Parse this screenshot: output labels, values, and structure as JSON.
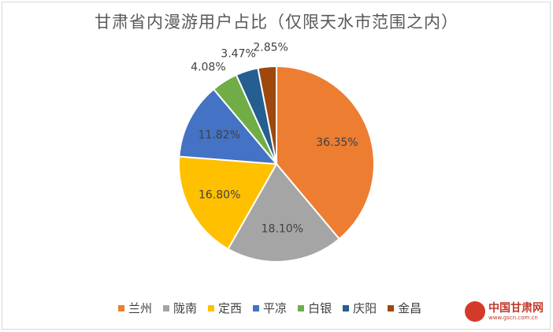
{
  "chart_data": {
    "type": "pie",
    "title": "甘肃省内漫游用户占比（仅限天水市范围之内）",
    "categories": [
      "兰州",
      "陇南",
      "定西",
      "平凉",
      "白银",
      "庆阳",
      "金昌"
    ],
    "values": [
      36.35,
      18.1,
      16.8,
      11.82,
      4.08,
      3.47,
      2.85
    ],
    "labels": [
      "36.35%",
      "18.10%",
      "16.80%",
      "11.82%",
      "4.08%",
      "3.47%",
      "2.85%"
    ],
    "colors": [
      "#ed7d31",
      "#a5a5a5",
      "#ffc000",
      "#4472c4",
      "#70ad47",
      "#255e91",
      "#9e480e"
    ],
    "legend_position": "bottom"
  },
  "watermark": {
    "text": "中国甘肃网",
    "url": "www.gscn.com.cn"
  }
}
